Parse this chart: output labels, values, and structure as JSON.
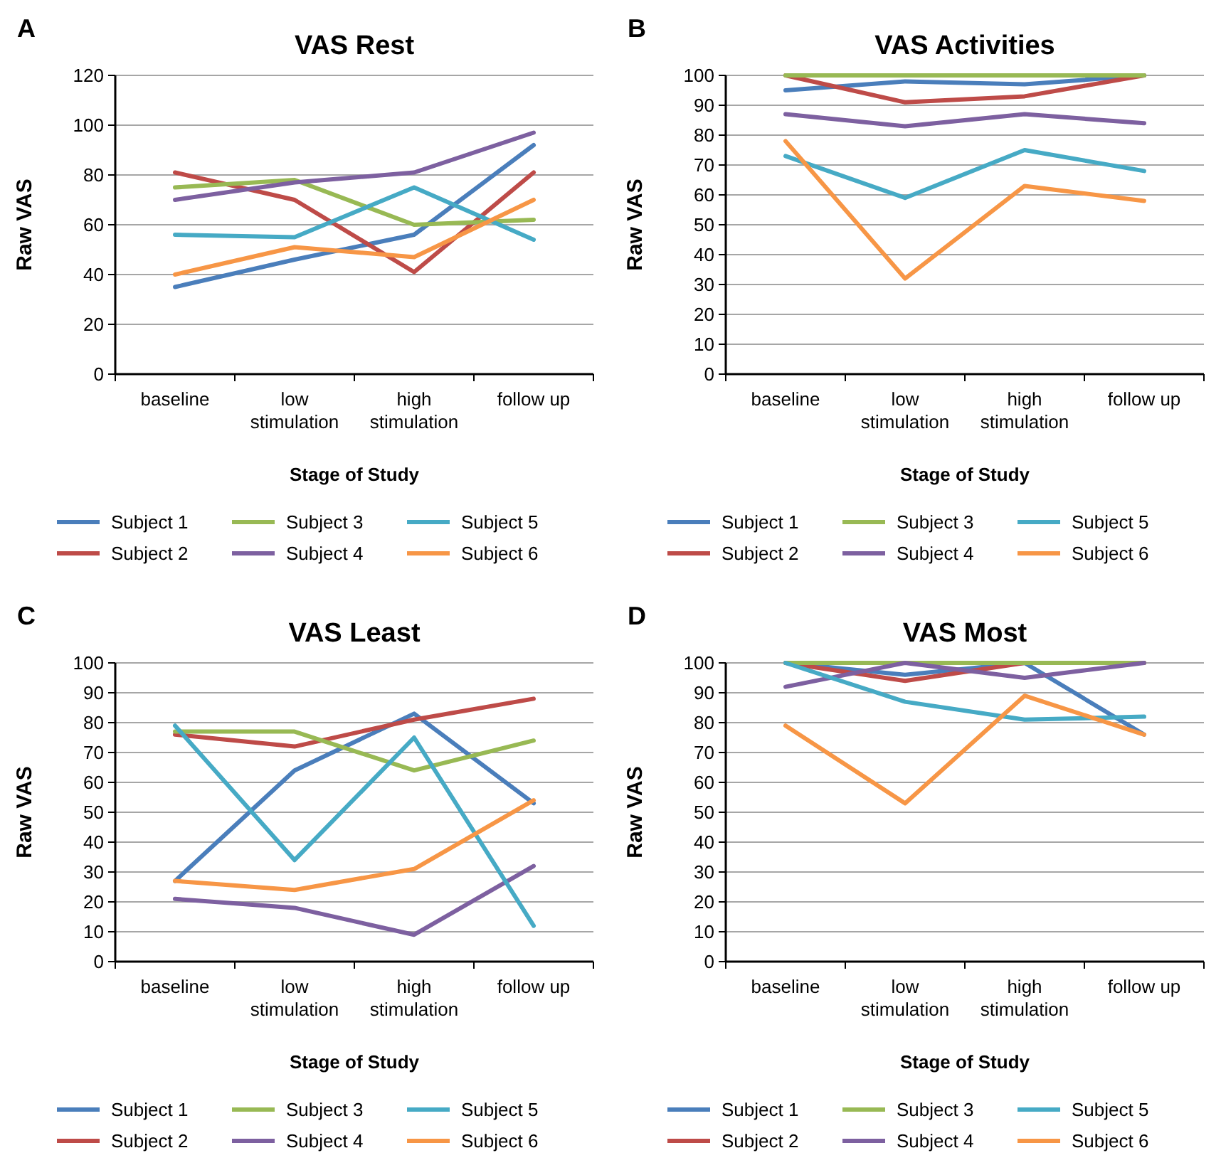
{
  "chart_data": [
    {
      "type": "line",
      "title": "VAS Rest",
      "annotations": [
        "A"
      ],
      "xlabel": "Stage of Study",
      "ylabel": "Raw VAS",
      "categories": [
        "baseline",
        "low stimulation",
        "high stimulation",
        "follow up"
      ],
      "ylim": [
        0,
        120
      ],
      "yticks": [
        0,
        20,
        40,
        60,
        80,
        100,
        120
      ],
      "grid": "y",
      "legend": "bottom",
      "marker": "none",
      "line_style": "solid",
      "series": [
        {
          "name": "Subject 1",
          "color": "#4a7ebb",
          "values": [
            35,
            46,
            56,
            92
          ]
        },
        {
          "name": "Subject 2",
          "color": "#be4b48",
          "values": [
            81,
            70,
            41,
            81
          ]
        },
        {
          "name": "Subject 3",
          "color": "#98b954",
          "values": [
            75,
            78,
            60,
            62
          ]
        },
        {
          "name": "Subject 4",
          "color": "#7d60a0",
          "values": [
            70,
            77,
            81,
            97
          ]
        },
        {
          "name": "Subject 5",
          "color": "#46aac5",
          "values": [
            56,
            55,
            75,
            54
          ]
        },
        {
          "name": "Subject 6",
          "color": "#f79646",
          "values": [
            40,
            51,
            47,
            70
          ]
        }
      ]
    },
    {
      "type": "line",
      "title": "VAS Activities",
      "annotations": [
        "B"
      ],
      "xlabel": "Stage of Study",
      "ylabel": "Raw VAS",
      "categories": [
        "baseline",
        "low stimulation",
        "high stimulation",
        "follow up"
      ],
      "ylim": [
        0,
        100
      ],
      "yticks": [
        0,
        10,
        20,
        30,
        40,
        50,
        60,
        70,
        80,
        90,
        100
      ],
      "grid": "y",
      "legend": "bottom",
      "marker": "none",
      "line_style": "solid",
      "series": [
        {
          "name": "Subject 1",
          "color": "#4a7ebb",
          "values": [
            95,
            98,
            97,
            100
          ]
        },
        {
          "name": "Subject 2",
          "color": "#be4b48",
          "values": [
            100,
            91,
            93,
            100
          ]
        },
        {
          "name": "Subject 3",
          "color": "#98b954",
          "values": [
            100,
            100,
            100,
            100
          ]
        },
        {
          "name": "Subject 4",
          "color": "#7d60a0",
          "values": [
            87,
            83,
            87,
            84
          ]
        },
        {
          "name": "Subject 5",
          "color": "#46aac5",
          "values": [
            73,
            59,
            75,
            68
          ]
        },
        {
          "name": "Subject 6",
          "color": "#f79646",
          "values": [
            78,
            32,
            63,
            58
          ]
        }
      ]
    },
    {
      "type": "line",
      "title": "VAS Least",
      "annotations": [
        "C"
      ],
      "xlabel": "Stage of Study",
      "ylabel": "Raw VAS",
      "categories": [
        "baseline",
        "low stimulation",
        "high stimulation",
        "follow up"
      ],
      "ylim": [
        0,
        100
      ],
      "yticks": [
        0,
        10,
        20,
        30,
        40,
        50,
        60,
        70,
        80,
        90,
        100
      ],
      "grid": "y",
      "legend": "bottom",
      "marker": "none",
      "line_style": "solid",
      "series": [
        {
          "name": "Subject 1",
          "color": "#4a7ebb",
          "values": [
            27,
            64,
            83,
            53
          ]
        },
        {
          "name": "Subject 2",
          "color": "#be4b48",
          "values": [
            76,
            72,
            81,
            88
          ]
        },
        {
          "name": "Subject 3",
          "color": "#98b954",
          "values": [
            77,
            77,
            64,
            74
          ]
        },
        {
          "name": "Subject 4",
          "color": "#7d60a0",
          "values": [
            21,
            18,
            9,
            32
          ]
        },
        {
          "name": "Subject 5",
          "color": "#46aac5",
          "values": [
            79,
            34,
            75,
            12
          ]
        },
        {
          "name": "Subject 6",
          "color": "#f79646",
          "values": [
            27,
            24,
            31,
            54
          ]
        }
      ]
    },
    {
      "type": "line",
      "title": "VAS Most",
      "annotations": [
        "D"
      ],
      "xlabel": "Stage of Study",
      "ylabel": "Raw VAS",
      "categories": [
        "baseline",
        "low stimulation",
        "high stimulation",
        "follow up"
      ],
      "ylim": [
        0,
        100
      ],
      "yticks": [
        0,
        10,
        20,
        30,
        40,
        50,
        60,
        70,
        80,
        90,
        100
      ],
      "grid": "y",
      "legend": "bottom",
      "marker": "none",
      "line_style": "solid",
      "series": [
        {
          "name": "Subject 1",
          "color": "#4a7ebb",
          "values": [
            100,
            96,
            100,
            76
          ]
        },
        {
          "name": "Subject 2",
          "color": "#be4b48",
          "values": [
            100,
            94,
            100,
            100
          ]
        },
        {
          "name": "Subject 3",
          "color": "#98b954",
          "values": [
            100,
            100,
            100,
            100
          ]
        },
        {
          "name": "Subject 4",
          "color": "#7d60a0",
          "values": [
            92,
            100,
            95,
            100
          ]
        },
        {
          "name": "Subject 5",
          "color": "#46aac5",
          "values": [
            100,
            87,
            81,
            82
          ]
        },
        {
          "name": "Subject 6",
          "color": "#f79646",
          "values": [
            79,
            53,
            89,
            76
          ]
        }
      ]
    }
  ]
}
